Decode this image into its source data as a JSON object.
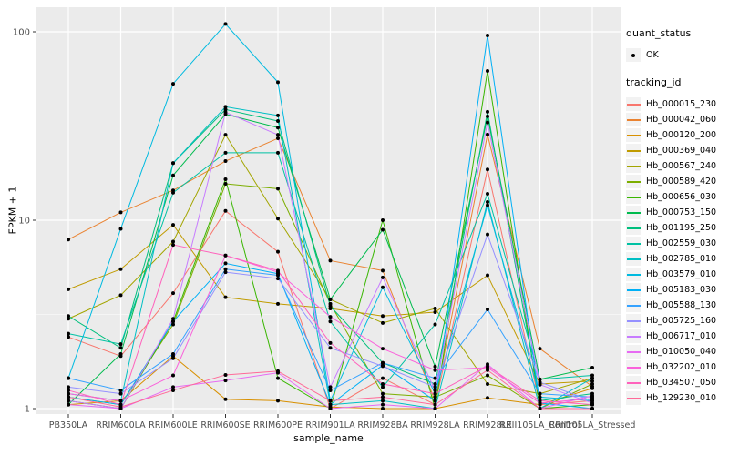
{
  "figure": {
    "background": "#FFFFFF",
    "panel_background": "#EBEBEB",
    "gridline_color": "#FFFFFF",
    "tick_text_color": "#4D4D4D",
    "marker_color": "#000000"
  },
  "axes": {
    "x": {
      "title": "sample_name"
    },
    "y": {
      "title": "FPKM + 1",
      "scale": "log10",
      "tick_values": [
        1,
        10,
        100
      ],
      "tick_labels": [
        "1",
        "10",
        "100"
      ]
    }
  },
  "legend": {
    "quant_status": {
      "title": "quant_status",
      "items": [
        {
          "label": "OK",
          "symbol": "point"
        }
      ]
    },
    "tracking_id": {
      "title": "tracking_id"
    }
  },
  "chart_data": {
    "type": "line",
    "title": "",
    "xlabel": "sample_name",
    "ylabel": "FPKM + 1",
    "yscale": "log10",
    "ylim": [
      1,
      120
    ],
    "grid": true,
    "legend_position": "right",
    "categories": [
      "PB350LA",
      "RRIM600LA",
      "RRIM600LE",
      "RRIM600SE",
      "RRIM600PE",
      "RRIM901LA",
      "RRIM928BA",
      "RRIM928LA",
      "RRIM928LE",
      "RRII105LA_Control",
      "RRII105LA_Stressed"
    ],
    "series": [
      {
        "name": "Hb_000015_230",
        "color": "#F8766D",
        "values": [
          2.4,
          1.9,
          4.1,
          11.2,
          6.8,
          1.0,
          1.45,
          1.05,
          18.6,
          1.05,
          1.1
        ]
      },
      {
        "name": "Hb_000042_060",
        "color": "#EA8331",
        "values": [
          7.9,
          11.0,
          14.4,
          20.6,
          27.2,
          6.1,
          5.4,
          1.1,
          28.5,
          2.08,
          1.31
        ]
      },
      {
        "name": "Hb_000120_200",
        "color": "#D89000",
        "values": [
          1.05,
          1.1,
          1.9,
          1.12,
          1.1,
          1.02,
          1.0,
          1.0,
          1.14,
          1.05,
          1.28
        ]
      },
      {
        "name": "Hb_000369_040",
        "color": "#C09B00",
        "values": [
          4.3,
          5.5,
          9.45,
          3.9,
          3.6,
          3.4,
          3.1,
          3.25,
          5.1,
          1.35,
          1.4
        ]
      },
      {
        "name": "Hb_000567_240",
        "color": "#A3A500",
        "values": [
          3.0,
          4.0,
          7.7,
          28.4,
          10.2,
          3.8,
          2.85,
          3.4,
          1.35,
          1.2,
          1.45
        ]
      },
      {
        "name": "Hb_000589_420",
        "color": "#7CAE00",
        "values": [
          1.15,
          1.05,
          2.8,
          15.6,
          14.7,
          3.6,
          1.2,
          1.15,
          1.5,
          1.0,
          1.35
        ]
      },
      {
        "name": "Hb_000656_030",
        "color": "#39B600",
        "values": [
          1.1,
          1.0,
          2.9,
          16.5,
          1.45,
          1.0,
          10.0,
          1.0,
          62.0,
          1.0,
          1.05
        ]
      },
      {
        "name": "Hb_000753_150",
        "color": "#00BB4E",
        "values": [
          1.05,
          1.95,
          17.3,
          36.5,
          31.0,
          3.8,
          8.9,
          1.67,
          35.6,
          1.43,
          1.65
        ]
      },
      {
        "name": "Hb_001195_250",
        "color": "#00BF7D",
        "values": [
          3.1,
          2.1,
          20.1,
          38.7,
          33.6,
          3.5,
          1.75,
          1.35,
          37.6,
          1.1,
          1.2
        ]
      },
      {
        "name": "Hb_002559_030",
        "color": "#00C1A3",
        "values": [
          2.5,
          2.2,
          14.0,
          22.8,
          22.8,
          2.9,
          1.3,
          2.8,
          13.8,
          1.43,
          1.5
        ]
      },
      {
        "name": "Hb_002785_010",
        "color": "#00BFC4",
        "values": [
          1.2,
          1.1,
          20.1,
          40.0,
          36.0,
          1.05,
          1.1,
          1.0,
          12.5,
          1.0,
          1.45
        ]
      },
      {
        "name": "Hb_003579_010",
        "color": "#00BAE0",
        "values": [
          1.45,
          9.0,
          53.0,
          110.0,
          54.0,
          1.1,
          4.4,
          1.2,
          12.0,
          1.15,
          1.1
        ]
      },
      {
        "name": "Hb_005183_030",
        "color": "#00B0F6",
        "values": [
          1.15,
          1.05,
          2.9,
          5.9,
          5.2,
          1.05,
          1.7,
          1.1,
          95.6,
          1.07,
          1.0
        ]
      },
      {
        "name": "Hb_005588_130",
        "color": "#35A2FF",
        "values": [
          1.45,
          1.25,
          1.95,
          5.5,
          5.1,
          1.25,
          1.75,
          1.45,
          3.36,
          1.2,
          1.15
        ]
      },
      {
        "name": "Hb_005725_160",
        "color": "#9590FF",
        "values": [
          1.3,
          1.2,
          1.85,
          5.3,
          4.9,
          2.1,
          1.68,
          1.3,
          8.4,
          1.38,
          1.1
        ]
      },
      {
        "name": "Hb_006717_010",
        "color": "#C77CFF",
        "values": [
          1.1,
          1.0,
          3.0,
          37.4,
          28.4,
          1.3,
          4.97,
          1.25,
          33.0,
          1.34,
          1.07
        ]
      },
      {
        "name": "Hb_010050_040",
        "color": "#E76BF3",
        "values": [
          1.05,
          1.0,
          1.3,
          1.41,
          1.55,
          1.0,
          1.05,
          1.0,
          1.72,
          1.0,
          1.17
        ]
      },
      {
        "name": "Hb_032202_010",
        "color": "#FA62DB",
        "values": [
          1.2,
          1.1,
          1.5,
          6.5,
          5.3,
          3.07,
          2.08,
          1.6,
          1.65,
          1.07,
          1.13
        ]
      },
      {
        "name": "Hb_034507_050",
        "color": "#FF62BC",
        "values": [
          1.25,
          1.05,
          7.4,
          6.5,
          5.4,
          2.23,
          1.35,
          1.2,
          1.68,
          1.1,
          1.05
        ]
      },
      {
        "name": "Hb_129230_010",
        "color": "#FF6A98",
        "values": [
          1.15,
          1.02,
          1.25,
          1.51,
          1.58,
          1.1,
          1.15,
          1.05,
          1.6,
          1.0,
          1.0
        ]
      }
    ]
  }
}
